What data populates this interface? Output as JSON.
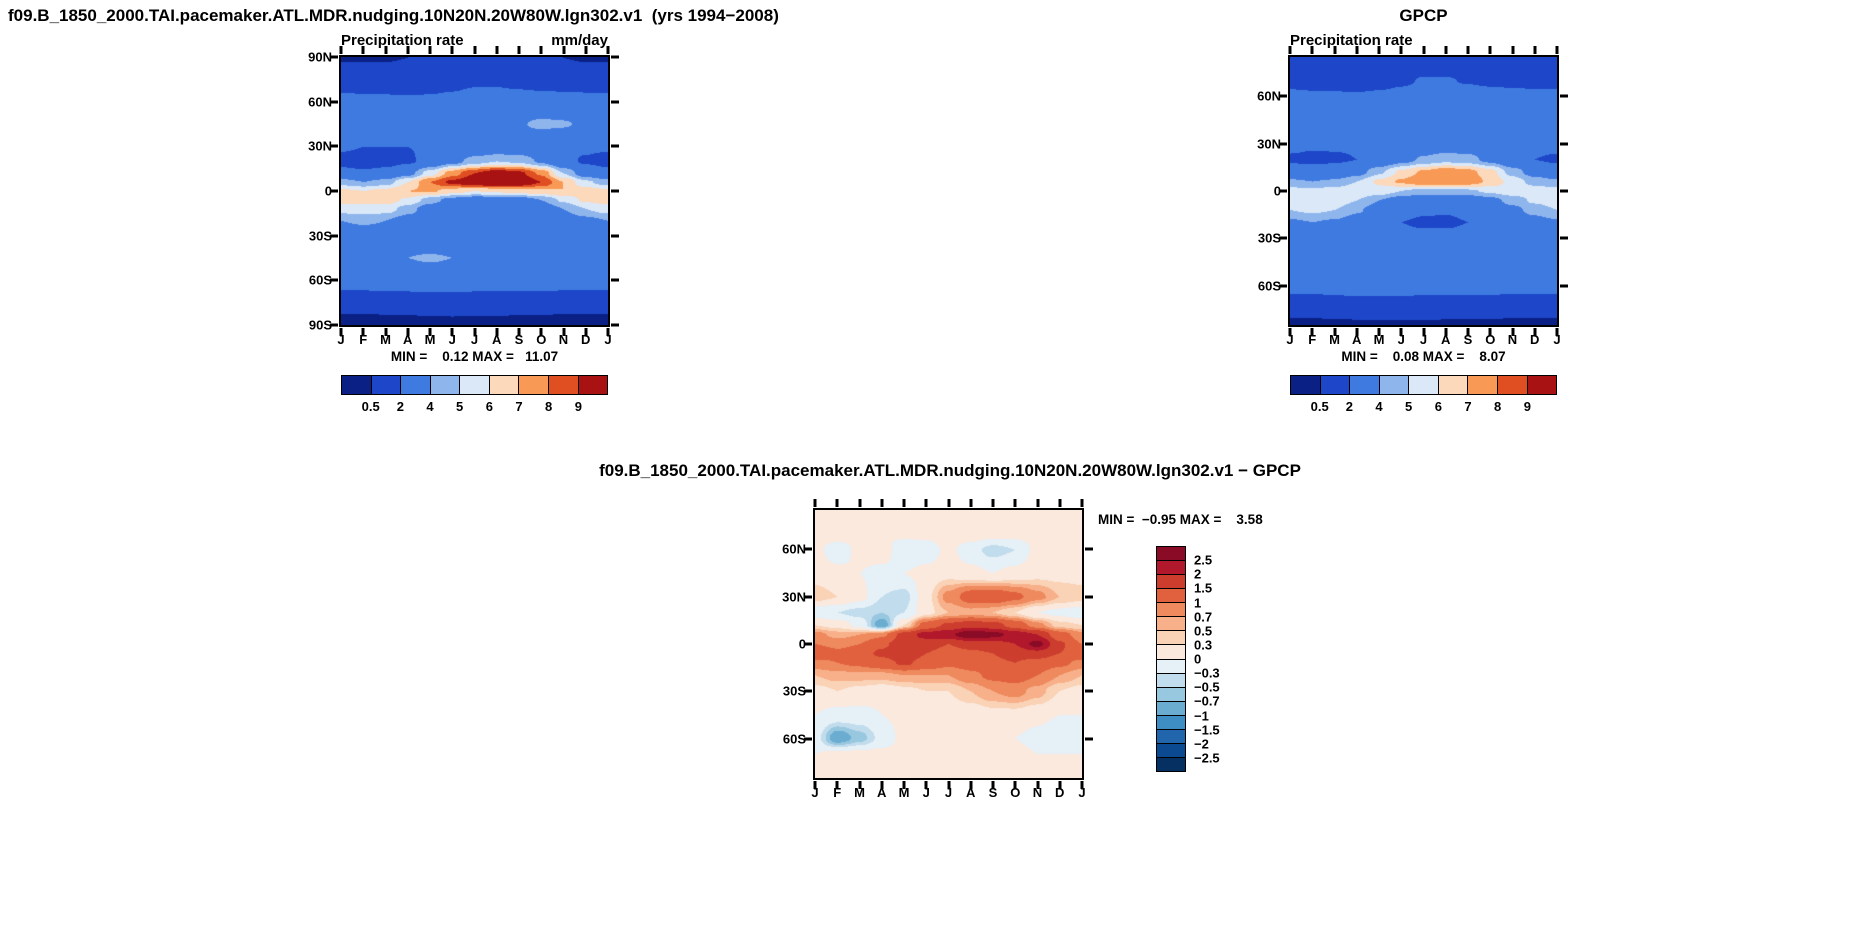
{
  "figure": {
    "background": "#ffffff",
    "text_color": "#000000"
  },
  "chart_data": [
    {
      "id": "model",
      "type": "heatmap",
      "title": "f09.B_1850_2000.TAI.pacemaker.ATL.MDR.nudging.10N20N.20W80W.lgn302.v1  (yrs 1994−2008)",
      "subtitle_left": "Precipitation rate",
      "units_label": "mm/day",
      "minmax": "MIN =    0.12 MAX =   11.07",
      "min": 0.12,
      "max": 11.07,
      "colorbar_orient": "h",
      "x_tick_labels": [
        "J",
        "F",
        "M",
        "A",
        "M",
        "J",
        "J",
        "A",
        "S",
        "O",
        "N",
        "D",
        "J"
      ],
      "y_tick_labels": [
        "90N",
        "60N",
        "30N",
        "0",
        "30S",
        "60S",
        "90S"
      ],
      "y_tick_lats": [
        90,
        60,
        30,
        0,
        -30,
        -60,
        -90
      ],
      "lat_range": [
        90,
        -90
      ],
      "lats": [
        90,
        75,
        60,
        45,
        30,
        20,
        12,
        6,
        0,
        -6,
        -12,
        -20,
        -30,
        -45,
        -60,
        -75,
        -90
      ],
      "values": [
        [
          0.45,
          0.45,
          0.45,
          0.5,
          0.6,
          0.8,
          1.0,
          1.0,
          0.8,
          0.6,
          0.5,
          0.45,
          0.45
        ],
        [
          0.9,
          0.9,
          0.9,
          1.0,
          1.2,
          1.4,
          1.7,
          1.7,
          1.4,
          1.2,
          1.0,
          0.9,
          0.9
        ],
        [
          2.6,
          2.5,
          2.4,
          2.3,
          2.3,
          2.5,
          2.8,
          2.9,
          2.9,
          2.8,
          2.8,
          2.7,
          2.6
        ],
        [
          3.4,
          3.2,
          3.0,
          2.9,
          2.8,
          3.0,
          3.3,
          3.6,
          3.9,
          4.2,
          4.1,
          3.8,
          3.4
        ],
        [
          2.2,
          2.0,
          2.0,
          2.0,
          2.2,
          2.4,
          2.6,
          2.8,
          2.8,
          2.6,
          2.4,
          2.3,
          2.2
        ],
        [
          1.5,
          1.4,
          1.5,
          1.8,
          2.5,
          3.5,
          4.5,
          5.0,
          4.8,
          3.8,
          2.5,
          1.8,
          1.5
        ],
        [
          2.5,
          2.2,
          2.5,
          3.5,
          5.5,
          7.5,
          9.0,
          9.8,
          9.3,
          7.8,
          5.0,
          3.2,
          2.5
        ],
        [
          4.5,
          4.0,
          4.5,
          6.0,
          8.0,
          9.3,
          10.2,
          10.9,
          10.3,
          9.0,
          7.0,
          5.2,
          4.5
        ],
        [
          6.2,
          6.0,
          6.3,
          7.0,
          7.2,
          6.5,
          6.0,
          6.2,
          6.5,
          6.8,
          7.0,
          6.6,
          6.2
        ],
        [
          6.5,
          6.4,
          6.5,
          5.8,
          4.5,
          3.5,
          3.0,
          3.0,
          3.2,
          4.0,
          5.2,
          6.2,
          6.5
        ],
        [
          5.5,
          5.6,
          5.5,
          4.5,
          3.2,
          2.5,
          2.2,
          2.2,
          2.4,
          3.0,
          4.0,
          5.0,
          5.5
        ],
        [
          4.0,
          4.2,
          4.0,
          3.4,
          2.8,
          2.4,
          2.2,
          2.2,
          2.4,
          2.8,
          3.2,
          3.6,
          4.0
        ],
        [
          3.0,
          3.2,
          3.2,
          3.0,
          2.8,
          2.6,
          2.5,
          2.5,
          2.6,
          2.8,
          2.9,
          3.0,
          3.0
        ],
        [
          3.4,
          3.6,
          3.8,
          4.0,
          4.1,
          4.0,
          3.8,
          3.6,
          3.5,
          3.5,
          3.4,
          3.4,
          3.4
        ],
        [
          2.8,
          2.9,
          3.0,
          3.1,
          3.2,
          3.2,
          3.1,
          3.0,
          3.0,
          3.0,
          2.9,
          2.8,
          2.8
        ],
        [
          0.9,
          0.9,
          1.0,
          1.0,
          1.1,
          1.1,
          1.0,
          1.0,
          1.0,
          1.0,
          0.9,
          0.9,
          0.9
        ],
        [
          0.15,
          0.15,
          0.15,
          0.2,
          0.2,
          0.25,
          0.25,
          0.25,
          0.2,
          0.2,
          0.15,
          0.15,
          0.15
        ]
      ],
      "levels": [
        0.5,
        2,
        4,
        5,
        6,
        7,
        8,
        9
      ],
      "colors": [
        "#0b2085",
        "#1d46c8",
        "#3f7ae0",
        "#8fb6ec",
        "#dbe8f7",
        "#fcd9bb",
        "#f89a56",
        "#e04f22",
        "#a81212"
      ],
      "colorbar_labels": [
        "0.5",
        "2",
        "4",
        "5",
        "6",
        "7",
        "8",
        "9"
      ]
    },
    {
      "id": "obs",
      "type": "heatmap",
      "title": "GPCP",
      "subtitle_left": "Precipitation rate",
      "minmax": "MIN =    0.08 MAX =    8.07",
      "min": 0.08,
      "max": 8.07,
      "colorbar_orient": "h",
      "x_tick_labels": [
        "J",
        "F",
        "M",
        "A",
        "M",
        "J",
        "J",
        "A",
        "S",
        "O",
        "N",
        "D",
        "J"
      ],
      "y_tick_labels": [
        "60N",
        "30N",
        "0",
        "30S",
        "60S"
      ],
      "y_tick_lats": [
        60,
        30,
        0,
        -30,
        -60
      ],
      "lat_range": [
        85,
        -85
      ],
      "lats": [
        85,
        70,
        60,
        45,
        30,
        20,
        12,
        6,
        0,
        -6,
        -12,
        -20,
        -30,
        -45,
        -60,
        -70,
        -85
      ],
      "values": [
        [
          0.6,
          0.6,
          0.6,
          0.7,
          0.8,
          0.9,
          1.0,
          1.0,
          0.9,
          0.8,
          0.7,
          0.6,
          0.6
        ],
        [
          1.3,
          1.2,
          1.2,
          1.3,
          1.5,
          1.8,
          2.1,
          2.1,
          1.9,
          1.6,
          1.4,
          1.3,
          1.3
        ],
        [
          2.6,
          2.4,
          2.3,
          2.2,
          2.3,
          2.5,
          2.8,
          3.0,
          3.0,
          3.0,
          2.9,
          2.7,
          2.6
        ],
        [
          3.2,
          3.0,
          2.9,
          2.8,
          2.7,
          2.8,
          3.0,
          3.2,
          3.4,
          3.5,
          3.4,
          3.3,
          3.2
        ],
        [
          2.4,
          2.2,
          2.2,
          2.2,
          2.3,
          2.5,
          2.8,
          3.0,
          3.0,
          2.8,
          2.6,
          2.5,
          2.4
        ],
        [
          1.8,
          1.7,
          1.8,
          2.0,
          2.6,
          3.4,
          4.2,
          4.6,
          4.4,
          3.6,
          2.6,
          2.0,
          1.8
        ],
        [
          2.8,
          2.6,
          2.8,
          3.4,
          4.8,
          6.2,
          7.2,
          7.8,
          7.4,
          6.4,
          4.6,
          3.4,
          2.8
        ],
        [
          4.2,
          4.0,
          4.2,
          5.0,
          6.2,
          7.2,
          7.9,
          8.0,
          7.7,
          6.8,
          5.6,
          4.6,
          4.2
        ],
        [
          5.4,
          5.3,
          5.5,
          5.8,
          5.6,
          5.0,
          4.6,
          4.6,
          4.8,
          5.2,
          5.6,
          5.6,
          5.4
        ],
        [
          5.6,
          5.7,
          5.6,
          5.0,
          4.0,
          3.2,
          2.8,
          2.7,
          2.9,
          3.5,
          4.4,
          5.2,
          5.6
        ],
        [
          5.0,
          5.2,
          5.0,
          4.2,
          3.2,
          2.6,
          2.2,
          2.1,
          2.3,
          2.8,
          3.6,
          4.4,
          5.0
        ],
        [
          3.8,
          4.0,
          3.8,
          3.2,
          2.5,
          2.0,
          1.8,
          1.8,
          2.0,
          2.4,
          2.9,
          3.4,
          3.8
        ],
        [
          3.0,
          3.1,
          3.1,
          3.0,
          2.8,
          2.6,
          2.4,
          2.4,
          2.5,
          2.7,
          2.8,
          2.9,
          3.0
        ],
        [
          3.6,
          3.8,
          3.9,
          3.8,
          3.6,
          3.4,
          3.3,
          3.2,
          3.2,
          3.3,
          3.4,
          3.5,
          3.6
        ],
        [
          2.6,
          2.7,
          2.9,
          3.0,
          3.1,
          3.0,
          2.9,
          2.8,
          2.8,
          2.8,
          2.7,
          2.6,
          2.6
        ],
        [
          1.5,
          1.5,
          1.6,
          1.7,
          1.7,
          1.7,
          1.6,
          1.6,
          1.6,
          1.6,
          1.5,
          1.5,
          1.5
        ],
        [
          0.3,
          0.3,
          0.3,
          0.35,
          0.4,
          0.4,
          0.4,
          0.35,
          0.35,
          0.3,
          0.3,
          0.3,
          0.3
        ]
      ],
      "levels": [
        0.5,
        2,
        4,
        5,
        6,
        7,
        8,
        9
      ],
      "colors": [
        "#0b2085",
        "#1d46c8",
        "#3f7ae0",
        "#8fb6ec",
        "#dbe8f7",
        "#fcd9bb",
        "#f89a56",
        "#e04f22",
        "#a81212"
      ],
      "colorbar_labels": [
        "0.5",
        "2",
        "4",
        "5",
        "6",
        "7",
        "8",
        "9"
      ]
    },
    {
      "id": "diff",
      "type": "heatmap",
      "title": "f09.B_1850_2000.TAI.pacemaker.ATL.MDR.nudging.10N20N.20W80W.lgn302.v1 − GPCP",
      "minmax": "MIN =  −0.95 MAX =    3.58",
      "min": -0.95,
      "max": 3.58,
      "colorbar_orient": "v",
      "x_tick_labels": [
        "J",
        "F",
        "M",
        "A",
        "M",
        "J",
        "J",
        "A",
        "S",
        "O",
        "N",
        "D",
        "J"
      ],
      "y_tick_labels": [
        "60N",
        "30N",
        "0",
        "30S",
        "60S"
      ],
      "y_tick_lats": [
        60,
        30,
        0,
        -30,
        -60
      ],
      "lat_range": [
        85,
        -85
      ],
      "lats": [
        85,
        70,
        60,
        45,
        30,
        20,
        12,
        6,
        0,
        -6,
        -12,
        -20,
        -30,
        -45,
        -60,
        -70,
        -85
      ],
      "values": [
        [
          0.1,
          0.1,
          0.1,
          0.1,
          0.1,
          0.1,
          0.1,
          0.1,
          0.1,
          0.1,
          0.1,
          0.1,
          0.1
        ],
        [
          0.1,
          0.2,
          0.1,
          0.0,
          0.1,
          0.1,
          0.2,
          0.2,
          0.1,
          0.1,
          0.1,
          0.1,
          0.1
        ],
        [
          0.1,
          -0.2,
          0.1,
          0.2,
          -0.3,
          -0.2,
          0.1,
          -0.2,
          -0.4,
          -0.3,
          0.1,
          0.2,
          0.1
        ],
        [
          0.2,
          0.1,
          0.0,
          -0.1,
          0.0,
          0.1,
          0.2,
          0.1,
          0.0,
          0.1,
          0.2,
          0.2,
          0.2
        ],
        [
          0.4,
          0.3,
          0.1,
          -0.3,
          -0.4,
          0.2,
          0.8,
          1.2,
          1.3,
          1.1,
          0.8,
          0.5,
          0.4
        ],
        [
          -0.2,
          -0.3,
          -0.4,
          -0.5,
          -0.3,
          0.2,
          0.5,
          0.6,
          0.5,
          0.3,
          0.0,
          -0.1,
          -0.2
        ],
        [
          0.3,
          0.2,
          -0.1,
          -0.9,
          0.3,
          1.2,
          1.6,
          1.8,
          1.7,
          1.3,
          0.8,
          0.4,
          0.3
        ],
        [
          0.8,
          0.6,
          0.7,
          0.9,
          1.7,
          2.2,
          2.4,
          2.9,
          2.7,
          2.3,
          2.0,
          1.2,
          0.8
        ],
        [
          1.0,
          0.9,
          1.0,
          1.4,
          1.8,
          1.7,
          1.5,
          1.7,
          1.8,
          2.0,
          2.7,
          1.6,
          1.0
        ],
        [
          1.3,
          1.1,
          1.3,
          1.6,
          1.9,
          1.5,
          1.3,
          1.4,
          1.5,
          1.7,
          1.8,
          1.5,
          1.3
        ],
        [
          0.9,
          1.0,
          1.1,
          1.3,
          1.6,
          1.3,
          1.1,
          1.2,
          1.4,
          1.5,
          1.3,
          1.1,
          0.9
        ],
        [
          0.5,
          0.6,
          0.6,
          0.6,
          0.7,
          0.7,
          0.7,
          0.9,
          1.1,
          1.2,
          1.0,
          0.7,
          0.5
        ],
        [
          0.2,
          0.3,
          0.2,
          0.1,
          0.2,
          0.3,
          0.3,
          0.5,
          0.7,
          0.8,
          0.6,
          0.3,
          0.2
        ],
        [
          0.0,
          -0.1,
          -0.1,
          0.0,
          0.1,
          0.1,
          0.1,
          0.1,
          0.2,
          0.2,
          0.1,
          0.0,
          0.0
        ],
        [
          -0.2,
          -0.9,
          -0.6,
          -0.2,
          0.1,
          0.2,
          0.2,
          0.1,
          0.1,
          0.0,
          -0.1,
          -0.3,
          -0.2
        ],
        [
          0.0,
          0.1,
          0.1,
          0.1,
          0.1,
          0.1,
          0.1,
          0.1,
          0.1,
          0.1,
          0.0,
          0.0,
          0.0
        ],
        [
          0.1,
          0.1,
          0.1,
          0.1,
          0.1,
          0.1,
          0.1,
          0.1,
          0.1,
          0.1,
          0.1,
          0.1,
          0.1
        ]
      ],
      "levels": [
        -2.5,
        -2,
        -1.5,
        -1,
        -0.7,
        -0.5,
        -0.3,
        0,
        0.3,
        0.5,
        0.7,
        1,
        1.5,
        2,
        2.5
      ],
      "colors": [
        "#053061",
        "#0b4a90",
        "#2166ac",
        "#3e8ec4",
        "#6bacd1",
        "#98c7e0",
        "#c1dcec",
        "#e6f0f7",
        "#fbe9dd",
        "#fad2b5",
        "#f7b089",
        "#ee8a5e",
        "#e1613f",
        "#cc3d2e",
        "#b2182b",
        "#8a0b25"
      ],
      "colorbar_labels": [
        "2.5",
        "2",
        "1.5",
        "1",
        "0.7",
        "0.5",
        "0.3",
        "0",
        "−0.3",
        "−0.5",
        "−0.7",
        "−1",
        "−1.5",
        "−2",
        "−2.5"
      ]
    }
  ]
}
